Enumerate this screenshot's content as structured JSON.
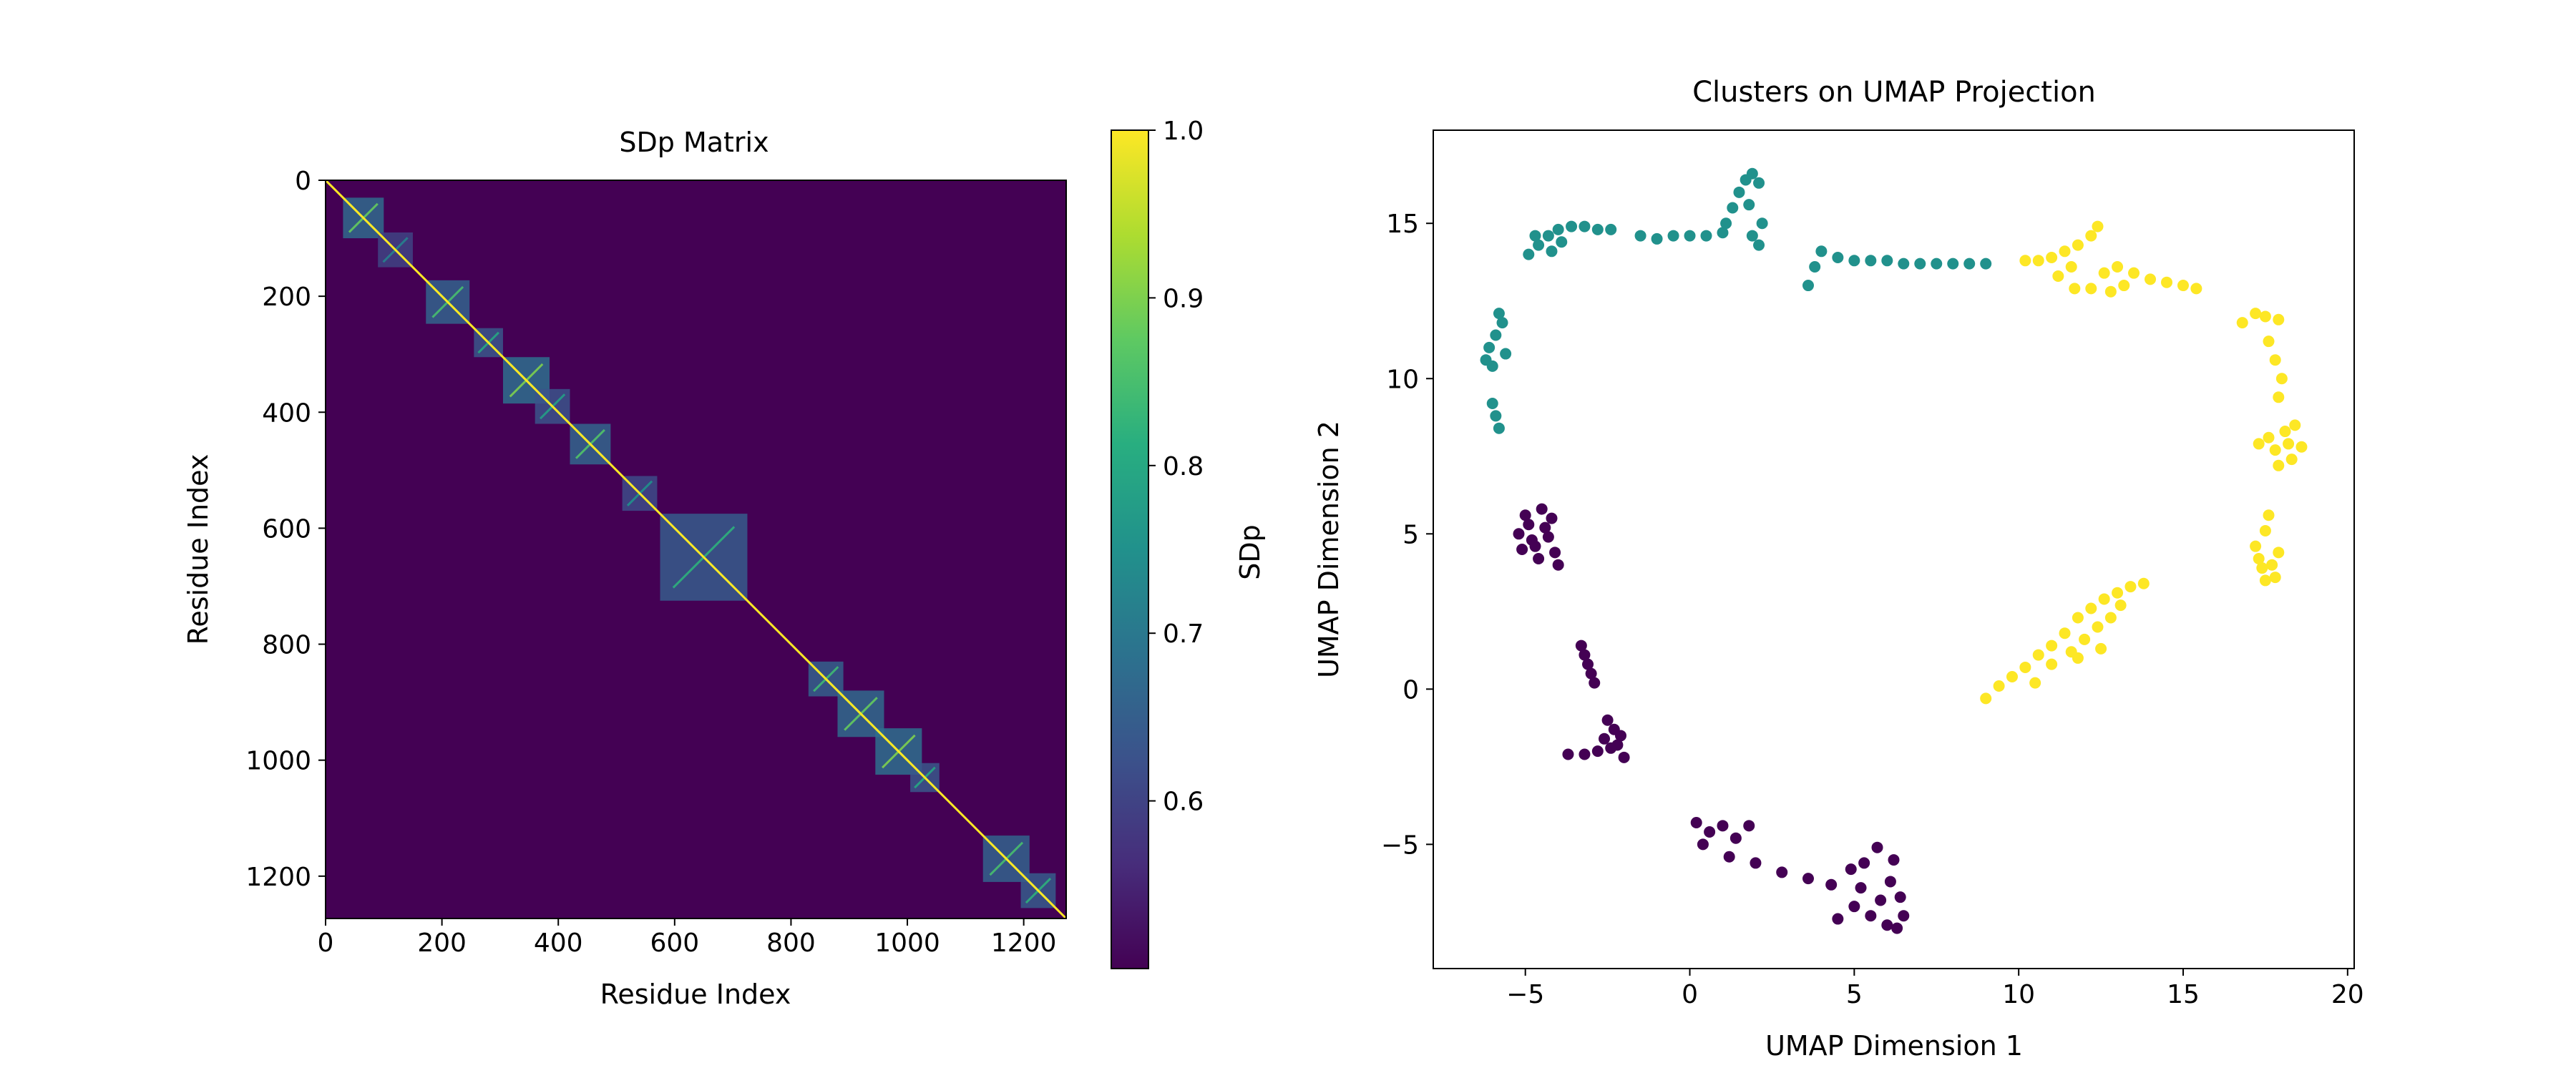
{
  "chart_data": [
    {
      "type": "heatmap",
      "title": "SDp Matrix",
      "xlabel": "Residue Index",
      "ylabel": "Residue Index",
      "xlim": [
        0,
        1273
      ],
      "ylim": [
        1273,
        0
      ],
      "xticks": [
        0,
        200,
        400,
        600,
        800,
        1000,
        1200
      ],
      "yticks": [
        0,
        200,
        400,
        600,
        800,
        1000,
        1200
      ],
      "colormap": "viridis",
      "colorbar": {
        "label": "SDp",
        "range": [
          0.5,
          1.0
        ],
        "ticks": [
          0.6,
          0.7,
          0.8,
          0.9,
          1.0
        ]
      },
      "diagonal_value": 1.0,
      "background_value": 0.5,
      "blocks": [
        {
          "center": 65,
          "size": 70,
          "value": 0.88
        },
        {
          "center": 120,
          "size": 60,
          "value": 0.72
        },
        {
          "center": 210,
          "size": 75,
          "value": 0.85
        },
        {
          "center": 280,
          "size": 50,
          "value": 0.8
        },
        {
          "center": 345,
          "size": 80,
          "value": 0.9
        },
        {
          "center": 390,
          "size": 60,
          "value": 0.78
        },
        {
          "center": 455,
          "size": 70,
          "value": 0.86
        },
        {
          "center": 540,
          "size": 60,
          "value": 0.75
        },
        {
          "center": 650,
          "size": 150,
          "value": 0.82
        },
        {
          "center": 860,
          "size": 60,
          "value": 0.84
        },
        {
          "center": 920,
          "size": 80,
          "value": 0.88
        },
        {
          "center": 985,
          "size": 80,
          "value": 0.9
        },
        {
          "center": 1030,
          "size": 50,
          "value": 0.8
        },
        {
          "center": 1170,
          "size": 80,
          "value": 0.85
        },
        {
          "center": 1225,
          "size": 60,
          "value": 0.82
        }
      ]
    },
    {
      "type": "scatter",
      "title": "Clusters on UMAP Projection",
      "xlabel": "UMAP Dimension 1",
      "ylabel": "UMAP Dimension 2",
      "xlim": [
        -7.8,
        20.2
      ],
      "ylim": [
        -9,
        18
      ],
      "xticks": [
        -5,
        0,
        5,
        10,
        15,
        20
      ],
      "yticks": [
        -5,
        0,
        5,
        10,
        15
      ],
      "series": [
        {
          "color": "#440154",
          "points": [
            [
              -5.0,
              5.6
            ],
            [
              -4.5,
              5.8
            ],
            [
              -4.2,
              5.5
            ],
            [
              -5.2,
              5.0
            ],
            [
              -4.8,
              4.8
            ],
            [
              -4.3,
              4.9
            ],
            [
              -4.1,
              4.4
            ],
            [
              -4.6,
              4.2
            ],
            [
              -5.1,
              4.5
            ],
            [
              -4.9,
              5.3
            ],
            [
              -4.4,
              5.2
            ],
            [
              -4.0,
              4.0
            ],
            [
              -4.7,
              4.6
            ],
            [
              -3.3,
              1.4
            ],
            [
              -3.2,
              1.1
            ],
            [
              -3.1,
              0.8
            ],
            [
              -3.0,
              0.5
            ],
            [
              -2.9,
              0.2
            ],
            [
              -2.5,
              -1.0
            ],
            [
              -2.3,
              -1.3
            ],
            [
              -2.6,
              -1.6
            ],
            [
              -2.2,
              -1.8
            ],
            [
              -2.0,
              -2.2
            ],
            [
              -2.8,
              -2.0
            ],
            [
              -3.2,
              -2.1
            ],
            [
              -3.7,
              -2.1
            ],
            [
              -2.4,
              -1.9
            ],
            [
              -2.1,
              -1.5
            ],
            [
              0.2,
              -4.3
            ],
            [
              0.6,
              -4.6
            ],
            [
              1.0,
              -4.4
            ],
            [
              1.4,
              -4.8
            ],
            [
              1.8,
              -4.4
            ],
            [
              0.4,
              -5.0
            ],
            [
              1.2,
              -5.4
            ],
            [
              2.0,
              -5.6
            ],
            [
              2.8,
              -5.9
            ],
            [
              3.6,
              -6.1
            ],
            [
              4.3,
              -6.3
            ],
            [
              4.9,
              -5.8
            ],
            [
              5.3,
              -5.6
            ],
            [
              5.7,
              -5.1
            ],
            [
              6.2,
              -5.5
            ],
            [
              6.1,
              -6.2
            ],
            [
              6.4,
              -6.7
            ],
            [
              6.5,
              -7.3
            ],
            [
              6.0,
              -7.6
            ],
            [
              5.5,
              -7.3
            ],
            [
              5.0,
              -7.0
            ],
            [
              4.5,
              -7.4
            ],
            [
              5.2,
              -6.4
            ],
            [
              5.8,
              -6.8
            ],
            [
              6.3,
              -7.7
            ]
          ]
        },
        {
          "color": "#21918c",
          "points": [
            [
              -6.1,
              11.0
            ],
            [
              -5.9,
              11.4
            ],
            [
              -5.7,
              11.8
            ],
            [
              -5.8,
              12.1
            ],
            [
              -6.2,
              10.6
            ],
            [
              -6.0,
              10.4
            ],
            [
              -5.6,
              10.8
            ],
            [
              -6.0,
              9.2
            ],
            [
              -5.9,
              8.8
            ],
            [
              -5.8,
              8.4
            ],
            [
              -4.9,
              14.0
            ],
            [
              -4.6,
              14.3
            ],
            [
              -4.3,
              14.6
            ],
            [
              -4.0,
              14.8
            ],
            [
              -3.6,
              14.9
            ],
            [
              -3.2,
              14.9
            ],
            [
              -2.8,
              14.8
            ],
            [
              -2.4,
              14.8
            ],
            [
              -4.7,
              14.6
            ],
            [
              -4.2,
              14.1
            ],
            [
              -3.9,
              14.4
            ],
            [
              -1.5,
              14.6
            ],
            [
              -1.0,
              14.5
            ],
            [
              -0.5,
              14.6
            ],
            [
              0.0,
              14.6
            ],
            [
              0.5,
              14.6
            ],
            [
              1.0,
              14.7
            ],
            [
              1.1,
              15.0
            ],
            [
              1.3,
              15.5
            ],
            [
              1.5,
              16.0
            ],
            [
              1.7,
              16.4
            ],
            [
              1.9,
              16.6
            ],
            [
              2.1,
              16.3
            ],
            [
              1.8,
              15.6
            ],
            [
              2.2,
              15.0
            ],
            [
              1.9,
              14.6
            ],
            [
              2.1,
              14.3
            ],
            [
              3.6,
              13.0
            ],
            [
              3.8,
              13.6
            ],
            [
              4.0,
              14.1
            ],
            [
              4.5,
              13.9
            ],
            [
              5.0,
              13.8
            ],
            [
              5.5,
              13.8
            ],
            [
              6.0,
              13.8
            ],
            [
              6.5,
              13.7
            ],
            [
              7.0,
              13.7
            ],
            [
              7.5,
              13.7
            ],
            [
              8.0,
              13.7
            ],
            [
              8.5,
              13.7
            ],
            [
              9.0,
              13.7
            ]
          ]
        },
        {
          "color": "#fde725",
          "points": [
            [
              10.2,
              13.8
            ],
            [
              10.6,
              13.8
            ],
            [
              11.0,
              13.9
            ],
            [
              11.4,
              14.1
            ],
            [
              11.8,
              14.3
            ],
            [
              12.2,
              14.6
            ],
            [
              12.4,
              14.9
            ],
            [
              11.6,
              13.6
            ],
            [
              11.2,
              13.3
            ],
            [
              11.7,
              12.9
            ],
            [
              12.2,
              12.9
            ],
            [
              12.8,
              12.8
            ],
            [
              13.2,
              13.0
            ],
            [
              13.5,
              13.4
            ],
            [
              14.0,
              13.2
            ],
            [
              14.5,
              13.1
            ],
            [
              15.0,
              13.0
            ],
            [
              15.4,
              12.9
            ],
            [
              12.6,
              13.4
            ],
            [
              13.0,
              13.6
            ],
            [
              16.8,
              11.8
            ],
            [
              17.2,
              12.1
            ],
            [
              17.5,
              12.0
            ],
            [
              17.9,
              11.9
            ],
            [
              17.6,
              11.2
            ],
            [
              17.8,
              10.6
            ],
            [
              18.0,
              10.0
            ],
            [
              17.9,
              9.4
            ],
            [
              17.3,
              7.9
            ],
            [
              17.8,
              7.7
            ],
            [
              18.2,
              7.9
            ],
            [
              18.6,
              7.8
            ],
            [
              18.1,
              8.3
            ],
            [
              17.6,
              8.1
            ],
            [
              18.3,
              7.4
            ],
            [
              17.9,
              7.2
            ],
            [
              18.4,
              8.5
            ],
            [
              17.6,
              5.6
            ],
            [
              17.5,
              5.1
            ],
            [
              17.2,
              4.6
            ],
            [
              17.3,
              4.2
            ],
            [
              17.7,
              4.0
            ],
            [
              17.8,
              3.6
            ],
            [
              17.4,
              3.9
            ],
            [
              17.9,
              4.4
            ],
            [
              17.5,
              3.5
            ],
            [
              9.0,
              -0.3
            ],
            [
              9.4,
              0.1
            ],
            [
              9.8,
              0.4
            ],
            [
              10.2,
              0.7
            ],
            [
              10.6,
              1.1
            ],
            [
              11.0,
              1.4
            ],
            [
              11.4,
              1.8
            ],
            [
              11.8,
              2.3
            ],
            [
              12.2,
              2.6
            ],
            [
              12.6,
              2.9
            ],
            [
              13.0,
              3.1
            ],
            [
              13.4,
              3.3
            ],
            [
              13.8,
              3.4
            ],
            [
              11.0,
              0.8
            ],
            [
              11.6,
              1.2
            ],
            [
              12.0,
              1.6
            ],
            [
              12.4,
              2.0
            ],
            [
              12.8,
              2.3
            ],
            [
              13.1,
              2.7
            ],
            [
              11.8,
              1.0
            ],
            [
              12.5,
              1.3
            ],
            [
              10.5,
              0.2
            ]
          ]
        }
      ]
    }
  ]
}
